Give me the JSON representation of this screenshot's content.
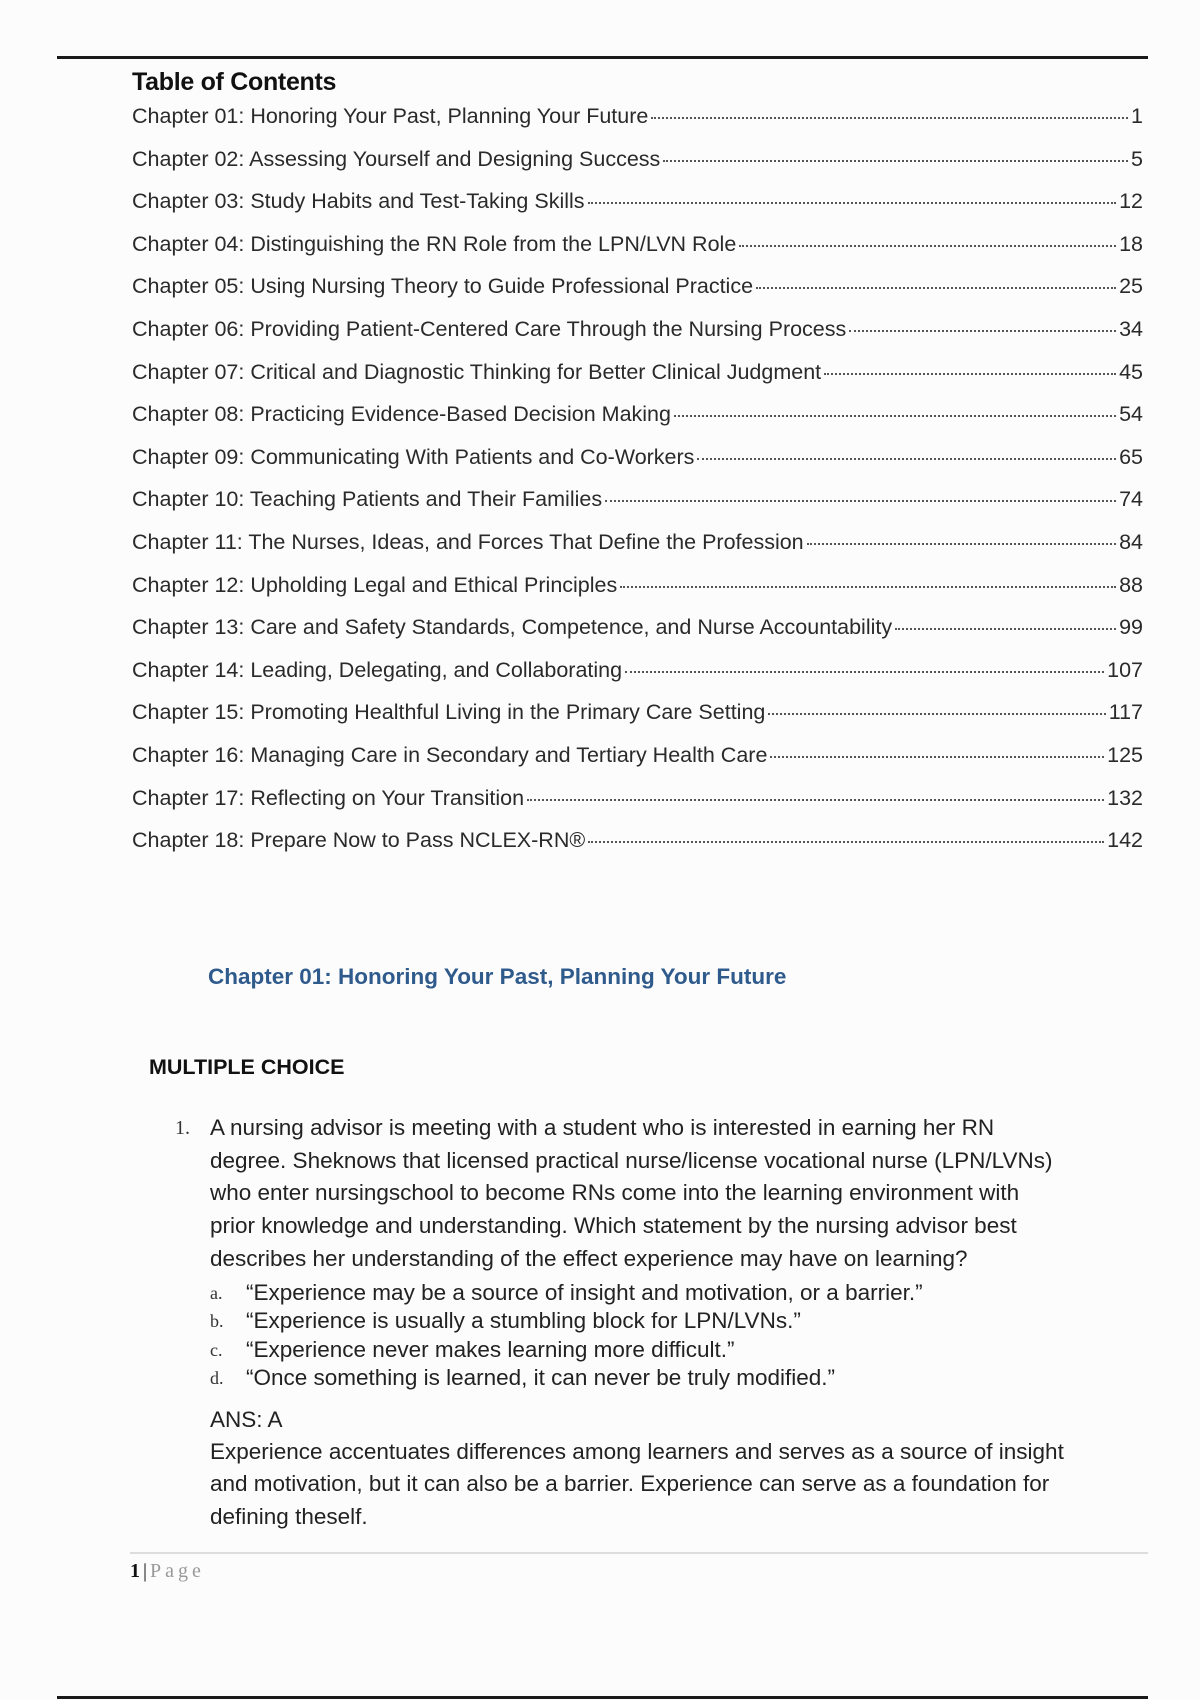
{
  "toc": {
    "title": "Table of Contents",
    "entries": [
      {
        "label": "Chapter 01: Honoring Your Past, Planning Your Future",
        "page": "1"
      },
      {
        "label": "Chapter 02: Assessing Yourself and Designing Success",
        "page": "5"
      },
      {
        "label": "Chapter 03: Study Habits and Test-Taking Skills",
        "page": "12"
      },
      {
        "label": "Chapter 04: Distinguishing the RN Role from the LPN/LVN Role",
        "page": "18"
      },
      {
        "label": "Chapter 05: Using Nursing Theory to Guide Professional Practice",
        "page": "25"
      },
      {
        "label": "Chapter 06: Providing Patient-Centered Care Through the Nursing Process",
        "page": "34"
      },
      {
        "label": "Chapter 07: Critical and Diagnostic Thinking for Better Clinical Judgment",
        "page": "45"
      },
      {
        "label": "Chapter 08: Practicing Evidence-Based Decision Making",
        "page": "54"
      },
      {
        "label": "Chapter 09: Communicating With Patients and Co-Workers",
        "page": "65"
      },
      {
        "label": "Chapter 10: Teaching Patients and Their Families",
        "page": "74"
      },
      {
        "label": "Chapter 11: The Nurses, Ideas, and Forces That Define the Profession",
        "page": "84"
      },
      {
        "label": "Chapter 12: Upholding Legal and Ethical Principles",
        "page": "88"
      },
      {
        "label": "Chapter 13: Care and Safety Standards, Competence, and Nurse Accountability",
        "page": "99"
      },
      {
        "label": "Chapter 14: Leading, Delegating, and Collaborating",
        "page": "107"
      },
      {
        "label": "Chapter 15: Promoting Healthful Living in the Primary Care Setting",
        "page": "117"
      },
      {
        "label": "Chapter 16: Managing Care in Secondary and Tertiary Health Care",
        "page": "125"
      },
      {
        "label": "Chapter 17: Reflecting on Your Transition",
        "page": "132"
      },
      {
        "label": "Chapter 18: Prepare Now to Pass NCLEX-RN®",
        "page": "142"
      }
    ]
  },
  "chapter_heading": "Chapter 01: Honoring Your Past, Planning Your Future",
  "section_heading": "MULTIPLE CHOICE",
  "question": {
    "number": "1.",
    "lines": [
      "A nursing advisor is meeting with a student who is interested in earning her RN",
      "degree. Sheknows that licensed practical nurse/license vocational nurse (LPN/LVNs)",
      "who enter nursingschool to become RNs come into the learning environment with",
      "prior knowledge and understanding. Which statement by the nursing advisor best",
      "describes her understanding of the effect experience may have on learning?"
    ],
    "options": [
      {
        "letter": "a.",
        "text": "“Experience may be a source of insight and motivation, or a barrier.”"
      },
      {
        "letter": "b.",
        "text": "“Experience is usually a stumbling block for LPN/LVNs.”"
      },
      {
        "letter": "c.",
        "text": "“Experience never makes learning more difficult.”"
      },
      {
        "letter": "d.",
        "text": "“Once something is learned, it can never be truly modified.”"
      }
    ],
    "answer": "ANS: A",
    "rationale_lines": [
      "Experience accentuates differences among learners and serves as a source of insight",
      "and motivation, but it can also be a barrier. Experience can serve as a foundation for",
      "defining theself."
    ]
  },
  "footer": {
    "page_number": "1",
    "separator": "|",
    "page_label": "Page"
  },
  "colors": {
    "chapter_heading": "#2f5b8c"
  }
}
